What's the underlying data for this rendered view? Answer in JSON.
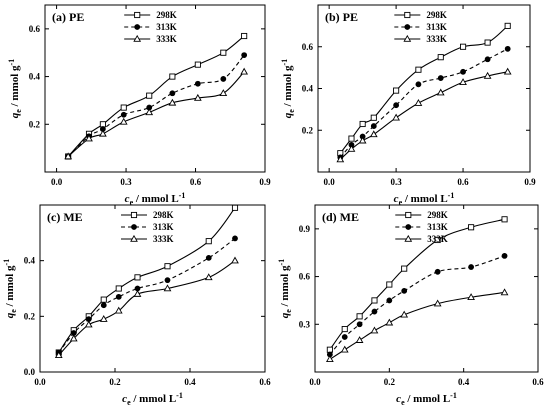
{
  "chart_data": [
    {
      "type": "line",
      "title": "(a) PE",
      "xlabel": "c_e / mmol L^-1",
      "ylabel": "q_e / mmol g^-1",
      "xlim": [
        -0.05,
        0.9
      ],
      "ylim": [
        0.0,
        0.7
      ],
      "xticks": [
        "0.0",
        "0.3",
        "0.6",
        "0.9"
      ],
      "xtick_values": [
        0.0,
        0.3,
        0.6,
        0.9
      ],
      "yticks": [
        "0.2",
        "0.4",
        "0.6"
      ],
      "ytick_values": [
        0.2,
        0.4,
        0.6
      ],
      "legend_position": "top-center",
      "series": [
        {
          "name": "298K",
          "marker": "open-square",
          "line": "solid",
          "x": [
            0.05,
            0.14,
            0.2,
            0.29,
            0.4,
            0.5,
            0.61,
            0.72,
            0.81
          ],
          "y": [
            0.065,
            0.16,
            0.2,
            0.27,
            0.32,
            0.4,
            0.45,
            0.5,
            0.57
          ]
        },
        {
          "name": "313K",
          "marker": "filled-circle",
          "line": "dashed",
          "x": [
            0.05,
            0.14,
            0.2,
            0.29,
            0.4,
            0.5,
            0.61,
            0.72,
            0.81
          ],
          "y": [
            0.065,
            0.15,
            0.18,
            0.24,
            0.27,
            0.33,
            0.37,
            0.39,
            0.49
          ]
        },
        {
          "name": "333K",
          "marker": "open-triangle",
          "line": "solid",
          "x": [
            0.05,
            0.14,
            0.2,
            0.29,
            0.4,
            0.5,
            0.61,
            0.72,
            0.81
          ],
          "y": [
            0.065,
            0.14,
            0.16,
            0.21,
            0.25,
            0.29,
            0.31,
            0.33,
            0.42
          ]
        }
      ]
    },
    {
      "type": "line",
      "title": "(b) PE",
      "xlabel": "c_e / mmol L^-1",
      "ylabel": "q_e / mmol g^-1",
      "xlim": [
        -0.05,
        0.9
      ],
      "ylim": [
        0.0,
        0.8
      ],
      "xticks": [
        "0.0",
        "0.3",
        "0.6",
        "0.9"
      ],
      "xtick_values": [
        0.0,
        0.3,
        0.6,
        0.9
      ],
      "yticks": [
        "0.2",
        "0.4",
        "0.6"
      ],
      "ytick_values": [
        0.2,
        0.4,
        0.6
      ],
      "legend_position": "top-center",
      "series": [
        {
          "name": "298K",
          "marker": "open-square",
          "line": "solid",
          "x": [
            0.05,
            0.1,
            0.15,
            0.2,
            0.3,
            0.4,
            0.5,
            0.6,
            0.71,
            0.8
          ],
          "y": [
            0.09,
            0.16,
            0.23,
            0.26,
            0.39,
            0.49,
            0.55,
            0.6,
            0.62,
            0.7
          ]
        },
        {
          "name": "313K",
          "marker": "filled-circle",
          "line": "dashed",
          "x": [
            0.05,
            0.1,
            0.15,
            0.2,
            0.3,
            0.4,
            0.5,
            0.6,
            0.71,
            0.8
          ],
          "y": [
            0.07,
            0.13,
            0.17,
            0.22,
            0.32,
            0.42,
            0.45,
            0.48,
            0.54,
            0.59
          ]
        },
        {
          "name": "333K",
          "marker": "open-triangle",
          "line": "solid",
          "x": [
            0.05,
            0.1,
            0.15,
            0.2,
            0.3,
            0.4,
            0.5,
            0.6,
            0.71,
            0.8
          ],
          "y": [
            0.06,
            0.11,
            0.15,
            0.18,
            0.26,
            0.33,
            0.38,
            0.43,
            0.46,
            0.48
          ]
        }
      ]
    },
    {
      "type": "line",
      "title": "(c) ME",
      "xlabel": "c_e / mmol L^-1",
      "ylabel": "q_e / mmol g^-1",
      "xlim": [
        0.0,
        0.6
      ],
      "ylim": [
        0.0,
        0.6
      ],
      "xticks": [
        "0.0",
        "0.2",
        "0.4",
        "0.6"
      ],
      "xtick_values": [
        0.0,
        0.2,
        0.4,
        0.6
      ],
      "yticks": [
        "0.0",
        "0.2",
        "0.4"
      ],
      "ytick_values": [
        0.0,
        0.2,
        0.4
      ],
      "legend_position": "top-center",
      "series": [
        {
          "name": "298K",
          "marker": "open-square",
          "line": "solid",
          "x": [
            0.05,
            0.09,
            0.13,
            0.17,
            0.21,
            0.26,
            0.34,
            0.45,
            0.52
          ],
          "y": [
            0.07,
            0.15,
            0.2,
            0.26,
            0.3,
            0.34,
            0.38,
            0.47,
            0.59
          ]
        },
        {
          "name": "313K",
          "marker": "filled-circle",
          "line": "dashed",
          "x": [
            0.05,
            0.09,
            0.13,
            0.17,
            0.21,
            0.26,
            0.34,
            0.45,
            0.52
          ],
          "y": [
            0.07,
            0.14,
            0.19,
            0.24,
            0.27,
            0.3,
            0.33,
            0.41,
            0.48
          ]
        },
        {
          "name": "333K",
          "marker": "open-triangle",
          "line": "solid",
          "x": [
            0.05,
            0.09,
            0.13,
            0.17,
            0.21,
            0.26,
            0.34,
            0.45,
            0.52
          ],
          "y": [
            0.06,
            0.12,
            0.17,
            0.19,
            0.22,
            0.28,
            0.3,
            0.34,
            0.4
          ]
        }
      ]
    },
    {
      "type": "line",
      "title": "(d) ME",
      "xlabel": "c_e / mmol L^-1",
      "ylabel": "q_e / mmol g^-1",
      "xlim": [
        0.0,
        0.6
      ],
      "ylim": [
        0.0,
        1.05
      ],
      "xticks": [
        "0.0",
        "0.2",
        "0.4",
        "0.6"
      ],
      "xtick_values": [
        0.0,
        0.2,
        0.4,
        0.6
      ],
      "yticks": [
        "0.3",
        "0.6",
        "0.9"
      ],
      "ytick_values": [
        0.3,
        0.6,
        0.9
      ],
      "legend_position": "top-center",
      "series": [
        {
          "name": "298K",
          "marker": "open-square",
          "line": "solid",
          "x": [
            0.04,
            0.08,
            0.12,
            0.16,
            0.2,
            0.24,
            0.33,
            0.42,
            0.51
          ],
          "y": [
            0.14,
            0.27,
            0.35,
            0.45,
            0.55,
            0.65,
            0.83,
            0.91,
            0.96
          ]
        },
        {
          "name": "313K",
          "marker": "filled-circle",
          "line": "dashed",
          "x": [
            0.04,
            0.08,
            0.12,
            0.16,
            0.2,
            0.24,
            0.33,
            0.42,
            0.51
          ],
          "y": [
            0.11,
            0.22,
            0.3,
            0.38,
            0.45,
            0.51,
            0.63,
            0.66,
            0.73
          ]
        },
        {
          "name": "333K",
          "marker": "open-triangle",
          "line": "solid",
          "x": [
            0.04,
            0.08,
            0.12,
            0.16,
            0.2,
            0.24,
            0.33,
            0.42,
            0.51
          ],
          "y": [
            0.08,
            0.14,
            0.2,
            0.26,
            0.31,
            0.36,
            0.43,
            0.47,
            0.5
          ]
        }
      ]
    }
  ]
}
